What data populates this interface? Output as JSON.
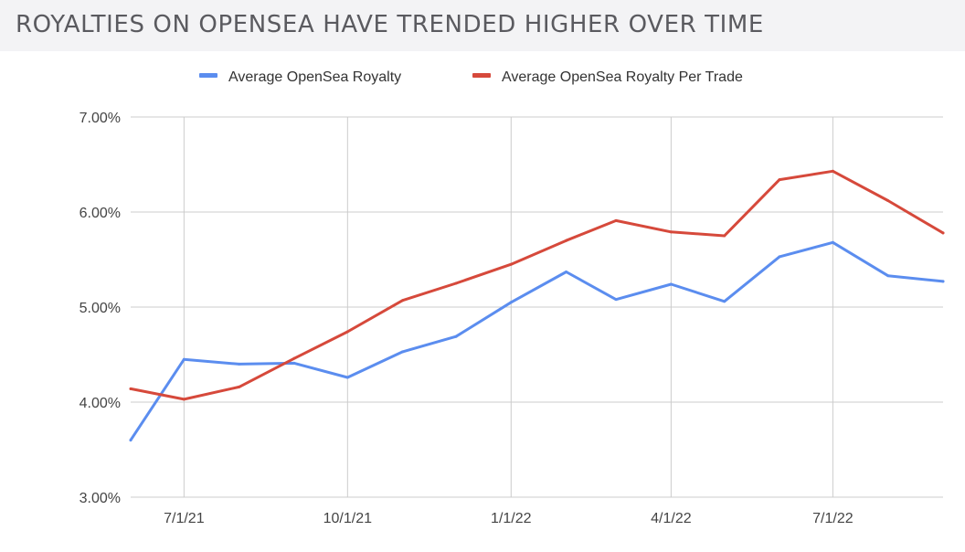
{
  "title": "ROYALTIES ON OPENSEA HAVE TRENDED HIGHER OVER TIME",
  "colors": {
    "background": "#f3f3f5",
    "gridline": "#cccccc",
    "series_blue": "#5b8def",
    "series_red": "#d6493b"
  },
  "chart_data": {
    "type": "line",
    "title": "ROYALTIES ON OPENSEA HAVE TRENDED HIGHER OVER TIME",
    "xlabel": "",
    "ylabel": "",
    "x": [
      "2021-06-01",
      "2021-07-01",
      "2021-08-01",
      "2021-09-01",
      "2021-10-01",
      "2021-11-01",
      "2021-12-01",
      "2022-01-01",
      "2022-02-01",
      "2022-03-01",
      "2022-04-01",
      "2022-05-01",
      "2022-06-01",
      "2022-07-01",
      "2022-08-01",
      "2022-09-01"
    ],
    "x_ticks": [
      "7/1/21",
      "10/1/21",
      "1/1/22",
      "4/1/22",
      "7/1/22"
    ],
    "y_ticks": [
      "3.00%",
      "4.00%",
      "5.00%",
      "6.00%",
      "7.00%"
    ],
    "ylim": [
      3.0,
      7.0
    ],
    "y_unit": "%",
    "grid": true,
    "legend_position": "top",
    "series": [
      {
        "name": "Average OpenSea Royalty",
        "color": "#5b8def",
        "values": [
          3.6,
          4.45,
          4.4,
          4.41,
          4.26,
          4.53,
          4.69,
          5.05,
          5.37,
          5.08,
          5.24,
          5.06,
          5.53,
          5.68,
          5.33,
          5.27
        ]
      },
      {
        "name": "Average OpenSea Royalty Per Trade",
        "color": "#d6493b",
        "values": [
          4.14,
          4.03,
          4.16,
          4.46,
          4.74,
          5.07,
          5.25,
          5.45,
          5.7,
          5.91,
          5.79,
          5.75,
          6.34,
          6.43,
          6.12,
          5.78
        ]
      }
    ]
  }
}
